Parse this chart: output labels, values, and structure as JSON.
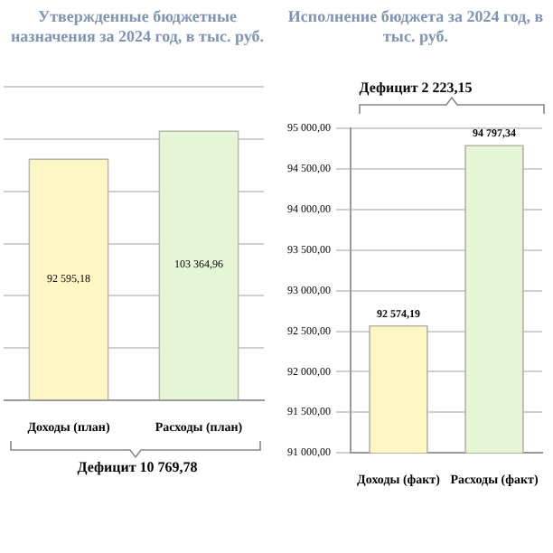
{
  "chart_data": [
    {
      "type": "bar",
      "title": "Утвержденные бюджетные назначения за 2024 год, в тыс. руб.",
      "categories": [
        "Доходы (план)",
        "Расходы (план)"
      ],
      "values": [
        92595.18,
        103364.96
      ],
      "value_labels": [
        "92 595,18",
        "103 364,96"
      ],
      "colors": [
        "#fff6c4",
        "#e6f5d6"
      ],
      "tick_labels": "x",
      "grid": "y",
      "annotations": [
        "Дефицит 10 769,78"
      ]
    },
    {
      "type": "bar",
      "title": "Исполнение бюджета за 2024 год, в тыс. руб.",
      "categories": [
        "Доходы (факт)",
        "Расходы (факт)"
      ],
      "values": [
        92574.19,
        94797.34
      ],
      "value_labels": [
        "92 574,19",
        "94 797,34"
      ],
      "colors": [
        "#fff6c4",
        "#e6f5d6"
      ],
      "ylim": [
        91000,
        95000
      ],
      "yticks": [
        {
          "value": 91000,
          "label": "91 000,00"
        },
        {
          "value": 91500,
          "label": "91 500,00"
        },
        {
          "value": 92000,
          "label": "92 000,00"
        },
        {
          "value": 92500,
          "label": "92 500,00"
        },
        {
          "value": 93000,
          "label": "93 000,00"
        },
        {
          "value": 93500,
          "label": "93 500,00"
        },
        {
          "value": 94000,
          "label": "94 000,00"
        },
        {
          "value": 94500,
          "label": "94 500,00"
        },
        {
          "value": 95000,
          "label": "95 000,00"
        }
      ],
      "grid": "y",
      "annotations": [
        "Дефицит 2 223,15"
      ]
    }
  ]
}
